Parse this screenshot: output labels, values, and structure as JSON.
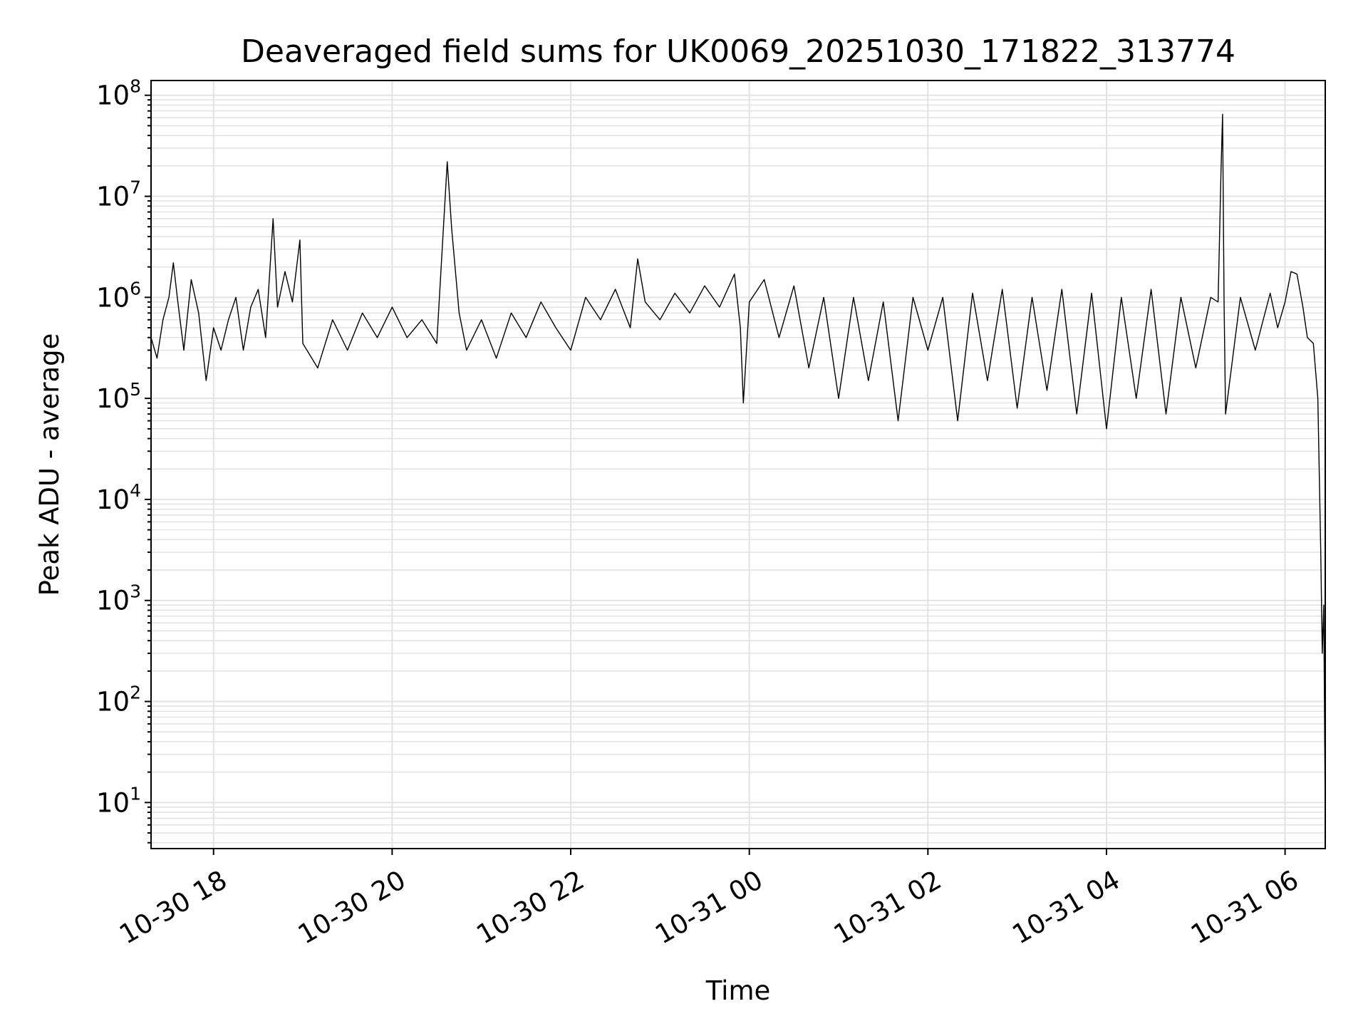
{
  "chart_data": {
    "type": "line",
    "title": "Deaveraged field sums for UK0069_20251030_171822_313774",
    "xlabel": "Time",
    "ylabel": "Peak ADU - average",
    "x_scale": "time",
    "y_scale": "log",
    "xlim": [
      "2025-10-30 17:18",
      "2025-10-31 06:27"
    ],
    "ylim": [
      3.5,
      140000000
    ],
    "grid": {
      "major": true,
      "minor": true
    },
    "x_ticks": [
      "10-30 18",
      "10-30 20",
      "10-30 22",
      "10-31 00",
      "10-31 02",
      "10-31 04",
      "10-31 06"
    ],
    "x_tick_times": [
      "2025-10-30 18:00",
      "2025-10-30 20:00",
      "2025-10-30 22:00",
      "2025-10-31 00:00",
      "2025-10-31 02:00",
      "2025-10-31 04:00",
      "2025-10-31 06:00"
    ],
    "y_ticks": [
      {
        "base": "10",
        "exp": "1",
        "value": 10
      },
      {
        "base": "10",
        "exp": "2",
        "value": 100
      },
      {
        "base": "10",
        "exp": "3",
        "value": 1000
      },
      {
        "base": "10",
        "exp": "4",
        "value": 10000
      },
      {
        "base": "10",
        "exp": "5",
        "value": 100000
      },
      {
        "base": "10",
        "exp": "6",
        "value": 1000000
      },
      {
        "base": "10",
        "exp": "7",
        "value": 10000000
      },
      {
        "base": "10",
        "exp": "8",
        "value": 100000000
      }
    ],
    "series": [
      {
        "color": "#000000",
        "points": [
          [
            "2025-10-30 17:18",
            400000
          ],
          [
            "2025-10-30 17:22",
            250000
          ],
          [
            "2025-10-30 17:26",
            600000
          ],
          [
            "2025-10-30 17:30",
            1000000
          ],
          [
            "2025-10-30 17:33",
            2200000
          ],
          [
            "2025-10-30 17:36",
            900000
          ],
          [
            "2025-10-30 17:40",
            300000
          ],
          [
            "2025-10-30 17:45",
            1500000
          ],
          [
            "2025-10-30 17:50",
            700000
          ],
          [
            "2025-10-30 17:55",
            150000
          ],
          [
            "2025-10-30 18:00",
            500000
          ],
          [
            "2025-10-30 18:05",
            300000
          ],
          [
            "2025-10-30 18:10",
            600000
          ],
          [
            "2025-10-30 18:15",
            1000000
          ],
          [
            "2025-10-30 18:20",
            300000
          ],
          [
            "2025-10-30 18:25",
            800000
          ],
          [
            "2025-10-30 18:30",
            1200000
          ],
          [
            "2025-10-30 18:35",
            400000
          ],
          [
            "2025-10-30 18:40",
            6000000
          ],
          [
            "2025-10-30 18:43",
            800000
          ],
          [
            "2025-10-30 18:48",
            1800000
          ],
          [
            "2025-10-30 18:53",
            900000
          ],
          [
            "2025-10-30 18:58",
            3700000
          ],
          [
            "2025-10-30 19:00",
            350000
          ],
          [
            "2025-10-30 19:10",
            200000
          ],
          [
            "2025-10-30 19:20",
            600000
          ],
          [
            "2025-10-30 19:30",
            300000
          ],
          [
            "2025-10-30 19:40",
            700000
          ],
          [
            "2025-10-30 19:50",
            400000
          ],
          [
            "2025-10-30 20:00",
            800000
          ],
          [
            "2025-10-30 20:10",
            400000
          ],
          [
            "2025-10-30 20:20",
            600000
          ],
          [
            "2025-10-30 20:30",
            350000
          ],
          [
            "2025-10-30 20:37",
            22000000
          ],
          [
            "2025-10-30 20:40",
            4800000
          ],
          [
            "2025-10-30 20:45",
            700000
          ],
          [
            "2025-10-30 20:50",
            300000
          ],
          [
            "2025-10-30 21:00",
            600000
          ],
          [
            "2025-10-30 21:10",
            250000
          ],
          [
            "2025-10-30 21:20",
            700000
          ],
          [
            "2025-10-30 21:30",
            400000
          ],
          [
            "2025-10-30 21:40",
            900000
          ],
          [
            "2025-10-30 21:50",
            500000
          ],
          [
            "2025-10-30 22:00",
            300000
          ],
          [
            "2025-10-30 22:10",
            1000000
          ],
          [
            "2025-10-30 22:20",
            600000
          ],
          [
            "2025-10-30 22:30",
            1200000
          ],
          [
            "2025-10-30 22:40",
            500000
          ],
          [
            "2025-10-30 22:45",
            2400000
          ],
          [
            "2025-10-30 22:50",
            900000
          ],
          [
            "2025-10-30 23:00",
            600000
          ],
          [
            "2025-10-30 23:10",
            1100000
          ],
          [
            "2025-10-30 23:20",
            700000
          ],
          [
            "2025-10-30 23:30",
            1300000
          ],
          [
            "2025-10-30 23:40",
            800000
          ],
          [
            "2025-10-30 23:50",
            1700000
          ],
          [
            "2025-10-30 23:54",
            500000
          ],
          [
            "2025-10-30 23:56",
            90000
          ],
          [
            "2025-10-31 00:00",
            900000
          ],
          [
            "2025-10-31 00:10",
            1500000
          ],
          [
            "2025-10-31 00:20",
            400000
          ],
          [
            "2025-10-31 00:30",
            1300000
          ],
          [
            "2025-10-31 00:40",
            200000
          ],
          [
            "2025-10-31 00:50",
            1000000
          ],
          [
            "2025-10-31 01:00",
            100000
          ],
          [
            "2025-10-31 01:10",
            1000000
          ],
          [
            "2025-10-31 01:20",
            150000
          ],
          [
            "2025-10-31 01:30",
            900000
          ],
          [
            "2025-10-31 01:40",
            60000
          ],
          [
            "2025-10-31 01:50",
            1000000
          ],
          [
            "2025-10-31 02:00",
            300000
          ],
          [
            "2025-10-31 02:10",
            1000000
          ],
          [
            "2025-10-31 02:20",
            60000
          ],
          [
            "2025-10-31 02:30",
            1100000
          ],
          [
            "2025-10-31 02:40",
            150000
          ],
          [
            "2025-10-31 02:50",
            1200000
          ],
          [
            "2025-10-31 03:00",
            80000
          ],
          [
            "2025-10-31 03:10",
            1000000
          ],
          [
            "2025-10-31 03:20",
            120000
          ],
          [
            "2025-10-31 03:30",
            1200000
          ],
          [
            "2025-10-31 03:40",
            70000
          ],
          [
            "2025-10-31 03:50",
            1100000
          ],
          [
            "2025-10-31 04:00",
            50000
          ],
          [
            "2025-10-31 04:10",
            1000000
          ],
          [
            "2025-10-31 04:20",
            100000
          ],
          [
            "2025-10-31 04:30",
            1200000
          ],
          [
            "2025-10-31 04:40",
            70000
          ],
          [
            "2025-10-31 04:50",
            1000000
          ],
          [
            "2025-10-31 05:00",
            200000
          ],
          [
            "2025-10-31 05:10",
            1000000
          ],
          [
            "2025-10-31 05:15",
            900000
          ],
          [
            "2025-10-31 05:17",
            19000000
          ],
          [
            "2025-10-31 05:18",
            65000000
          ],
          [
            "2025-10-31 05:19",
            900000
          ],
          [
            "2025-10-31 05:20",
            70000
          ],
          [
            "2025-10-31 05:30",
            1000000
          ],
          [
            "2025-10-31 05:40",
            300000
          ],
          [
            "2025-10-31 05:50",
            1100000
          ],
          [
            "2025-10-31 05:55",
            500000
          ],
          [
            "2025-10-31 06:00",
            900000
          ],
          [
            "2025-10-31 06:04",
            1800000
          ],
          [
            "2025-10-31 06:08",
            1700000
          ],
          [
            "2025-10-31 06:12",
            800000
          ],
          [
            "2025-10-31 06:15",
            400000
          ],
          [
            "2025-10-31 06:19",
            350000
          ],
          [
            "2025-10-31 06:22",
            100000
          ],
          [
            "2025-10-31 06:24",
            3000
          ],
          [
            "2025-10-31 06:25",
            300
          ],
          [
            "2025-10-31 06:26",
            900
          ],
          [
            "2025-10-31 06:27",
            7
          ]
        ]
      }
    ]
  }
}
